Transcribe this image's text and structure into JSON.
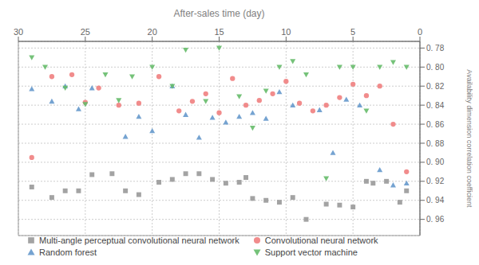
{
  "chart_data": {
    "type": "scatter",
    "x_label": "After-sales time (day)",
    "y_label": "Availability dimension correlation coefficient",
    "xlim": [
      30,
      0
    ],
    "xticks": [
      30,
      25,
      20,
      15,
      10,
      5,
      0
    ],
    "ylim": [
      0.977,
      0.773
    ],
    "yticks": [
      {
        "value": 0.78,
        "label": "0. 78"
      },
      {
        "value": 0.8,
        "label": "0. 80"
      },
      {
        "value": 0.82,
        "label": "0. 82"
      },
      {
        "value": 0.84,
        "label": "0. 84"
      },
      {
        "value": 0.86,
        "label": "0. 86"
      },
      {
        "value": 0.88,
        "label": "0. 88"
      },
      {
        "value": 0.9,
        "label": "0. 90"
      },
      {
        "value": 0.92,
        "label": "0. 92"
      },
      {
        "value": 0.94,
        "label": "0. 94"
      },
      {
        "value": 0.96,
        "label": "0. 96"
      }
    ],
    "grid": true,
    "legend": "bottom",
    "series": [
      {
        "name": "Multi-angle perceptual convolutional neural network",
        "color": "#999999",
        "marker": "square",
        "x": [
          29.0,
          27.5,
          26.5,
          25.5,
          24.5,
          23.0,
          22.0,
          21.0,
          19.5,
          18.5,
          17.5,
          16.5,
          15.5,
          14.5,
          13.5,
          13.0,
          12.5,
          11.5,
          10.5,
          9.5,
          8.5,
          7.0,
          6.0,
          5.0,
          4.0,
          3.5,
          2.5,
          1.5,
          1.0
        ],
        "y": [
          0.926,
          0.937,
          0.93,
          0.93,
          0.913,
          0.912,
          0.93,
          0.934,
          0.921,
          0.918,
          0.912,
          0.912,
          0.918,
          0.922,
          0.921,
          0.916,
          0.938,
          0.94,
          0.942,
          0.937,
          0.96,
          0.944,
          0.945,
          0.947,
          0.92,
          0.922,
          0.92,
          0.942,
          0.93
        ]
      },
      {
        "name": "Convolutional neural network",
        "color": "#f08080",
        "marker": "circle",
        "x": [
          29.0,
          27.5,
          26.0,
          25.0,
          24.0,
          22.5,
          21.0,
          19.5,
          18.0,
          17.0,
          16.0,
          15.0,
          14.0,
          13.0,
          12.0,
          11.0,
          10.0,
          9.0,
          8.0,
          7.0,
          6.0,
          5.0,
          4.0,
          3.0,
          2.0,
          1.0
        ],
        "y": [
          0.895,
          0.81,
          0.808,
          0.837,
          0.822,
          0.84,
          0.838,
          0.81,
          0.846,
          0.836,
          0.828,
          0.848,
          0.812,
          0.84,
          0.835,
          0.828,
          0.815,
          0.838,
          0.846,
          0.84,
          0.832,
          0.818,
          0.83,
          0.82,
          0.86,
          0.91
        ]
      },
      {
        "name": "Random forest",
        "color": "#6699cc",
        "marker": "triangle-up",
        "x": [
          29.0,
          27.5,
          26.5,
          25.5,
          24.5,
          22.0,
          21.0,
          20.0,
          18.5,
          17.5,
          16.5,
          15.5,
          14.5,
          13.5,
          12.5,
          11.5,
          10.5,
          9.5,
          7.5,
          6.5,
          5.5,
          4.5,
          3.0,
          2.0,
          1.0
        ],
        "y": [
          0.823,
          0.836,
          0.82,
          0.844,
          0.822,
          0.873,
          0.852,
          0.867,
          0.82,
          0.85,
          0.874,
          0.853,
          0.858,
          0.852,
          0.848,
          0.854,
          0.826,
          0.84,
          0.845,
          0.89,
          0.834,
          0.84,
          0.908,
          0.924,
          0.922
        ]
      },
      {
        "name": "Support vector machine",
        "color": "#66bb6a",
        "marker": "triangle-down",
        "x": [
          29.0,
          28.0,
          26.5,
          25.0,
          23.5,
          22.5,
          21.5,
          20.0,
          18.5,
          17.5,
          16.0,
          15.0,
          13.5,
          12.5,
          11.5,
          10.5,
          9.5,
          8.5,
          7.0,
          6.0,
          5.0,
          4.0,
          3.0,
          2.0,
          1.0
        ],
        "y": [
          0.79,
          0.8,
          0.822,
          0.839,
          0.808,
          0.835,
          0.81,
          0.8,
          0.82,
          0.782,
          0.836,
          0.78,
          0.831,
          0.864,
          0.825,
          0.8,
          0.794,
          0.808,
          0.917,
          0.8,
          0.8,
          0.846,
          0.8,
          0.795,
          0.8
        ]
      }
    ]
  }
}
